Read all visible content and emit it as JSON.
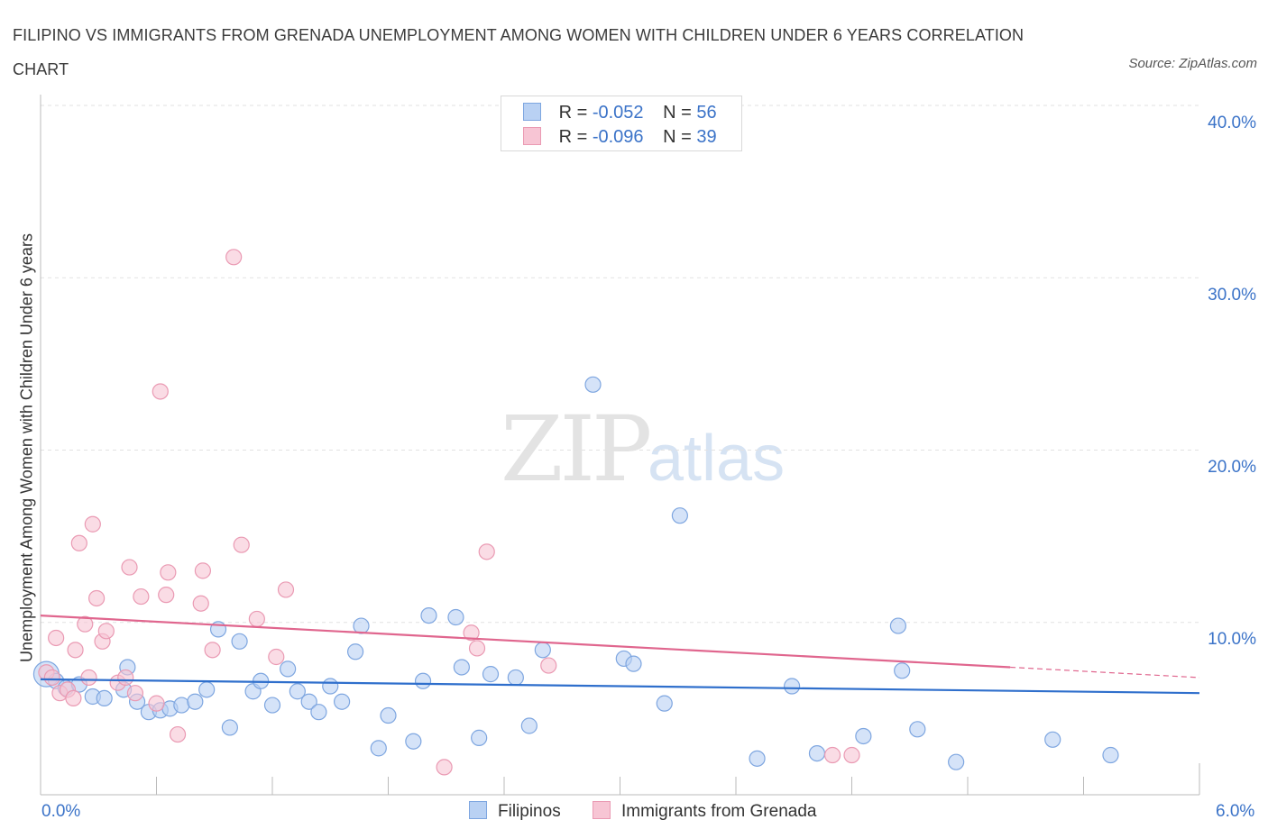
{
  "title": "FILIPINO VS IMMIGRANTS FROM GRENADA UNEMPLOYMENT AMONG WOMEN WITH CHILDREN UNDER 6 YEARS CORRELATION CHART",
  "source": "Source: ZipAtlas.com",
  "watermark": {
    "zip": "ZIP",
    "atlas": "atlas"
  },
  "legend": {
    "rows": [
      {
        "r_label": "R =",
        "r_value": "-0.052",
        "n_label": "N =",
        "n_value": "56"
      },
      {
        "r_label": "R =",
        "r_value": "-0.096",
        "n_label": "N =",
        "n_value": "39"
      }
    ]
  },
  "colors": {
    "filipinos_fill": "#b9d1f3",
    "filipinos_stroke": "#7ea6e0",
    "filipinos_line": "#2f6fcc",
    "grenada_fill": "#f7c5d4",
    "grenada_stroke": "#ea9ab3",
    "grenada_line": "#e0668e",
    "accent_text": "#3b73c8"
  },
  "chart_data": {
    "type": "scatter",
    "title": "FILIPINO VS IMMIGRANTS FROM GRENADA UNEMPLOYMENT AMONG WOMEN WITH CHILDREN UNDER 6 YEARS CORRELATION CHART",
    "xlabel": "",
    "ylabel": "Unemployment Among Women with Children Under 6 years",
    "xlim": [
      0,
      6
    ],
    "ylim": [
      0,
      40
    ],
    "x_tick_labels": [
      "0.0%",
      "6.0%"
    ],
    "y_tick_labels": [
      "10.0%",
      "20.0%",
      "30.0%",
      "40.0%"
    ],
    "y_ticks": [
      10,
      20,
      30,
      40
    ],
    "grid": true,
    "legend_position": "top-center",
    "series": [
      {
        "name": "Filipinos",
        "trend": {
          "x0": 0.0,
          "y0": 6.7,
          "x1": 6.0,
          "y1": 5.9
        },
        "points": [
          [
            0.03,
            7.0
          ],
          [
            0.08,
            6.6
          ],
          [
            0.13,
            6.2
          ],
          [
            0.2,
            6.4
          ],
          [
            0.27,
            5.7
          ],
          [
            0.33,
            5.6
          ],
          [
            0.43,
            6.1
          ],
          [
            0.45,
            7.4
          ],
          [
            0.5,
            5.4
          ],
          [
            0.56,
            4.8
          ],
          [
            0.62,
            4.9
          ],
          [
            0.67,
            5.0
          ],
          [
            0.73,
            5.2
          ],
          [
            0.8,
            5.4
          ],
          [
            0.86,
            6.1
          ],
          [
            0.92,
            9.6
          ],
          [
            0.98,
            3.9
          ],
          [
            1.03,
            8.9
          ],
          [
            1.1,
            6.0
          ],
          [
            1.14,
            6.6
          ],
          [
            1.2,
            5.2
          ],
          [
            1.28,
            7.3
          ],
          [
            1.33,
            6.0
          ],
          [
            1.39,
            5.4
          ],
          [
            1.44,
            4.8
          ],
          [
            1.5,
            6.3
          ],
          [
            1.56,
            5.4
          ],
          [
            1.63,
            8.3
          ],
          [
            1.66,
            9.8
          ],
          [
            1.75,
            2.7
          ],
          [
            1.8,
            4.6
          ],
          [
            1.93,
            3.1
          ],
          [
            1.98,
            6.6
          ],
          [
            2.01,
            10.4
          ],
          [
            2.15,
            10.3
          ],
          [
            2.18,
            7.4
          ],
          [
            2.27,
            3.3
          ],
          [
            2.33,
            7.0
          ],
          [
            2.46,
            6.8
          ],
          [
            2.53,
            4.0
          ],
          [
            2.6,
            8.4
          ],
          [
            2.86,
            23.8
          ],
          [
            3.02,
            7.9
          ],
          [
            3.07,
            7.6
          ],
          [
            3.23,
            5.3
          ],
          [
            3.31,
            16.2
          ],
          [
            3.71,
            2.1
          ],
          [
            3.89,
            6.3
          ],
          [
            4.02,
            2.4
          ],
          [
            4.26,
            3.4
          ],
          [
            4.44,
            9.8
          ],
          [
            4.46,
            7.2
          ],
          [
            4.54,
            3.8
          ],
          [
            4.74,
            1.9
          ],
          [
            5.24,
            3.2
          ],
          [
            5.54,
            2.3
          ]
        ]
      },
      {
        "name": "Immigrants from Grenada",
        "trend": {
          "x0": 0.0,
          "y0": 10.4,
          "x1": 5.02,
          "y1": 7.4,
          "dashed_to_x": 6.0,
          "dashed_to_y": 6.8
        },
        "points": [
          [
            0.03,
            7.1
          ],
          [
            0.06,
            6.8
          ],
          [
            0.08,
            9.1
          ],
          [
            0.1,
            5.9
          ],
          [
            0.14,
            6.1
          ],
          [
            0.17,
            5.6
          ],
          [
            0.18,
            8.4
          ],
          [
            0.2,
            14.6
          ],
          [
            0.23,
            9.9
          ],
          [
            0.25,
            6.8
          ],
          [
            0.27,
            15.7
          ],
          [
            0.29,
            11.4
          ],
          [
            0.32,
            8.9
          ],
          [
            0.34,
            9.5
          ],
          [
            0.4,
            6.5
          ],
          [
            0.44,
            6.8
          ],
          [
            0.46,
            13.2
          ],
          [
            0.49,
            5.9
          ],
          [
            0.52,
            11.5
          ],
          [
            0.6,
            5.3
          ],
          [
            0.62,
            23.4
          ],
          [
            0.65,
            11.6
          ],
          [
            0.66,
            12.9
          ],
          [
            0.71,
            3.5
          ],
          [
            0.83,
            11.1
          ],
          [
            0.84,
            13.0
          ],
          [
            0.89,
            8.4
          ],
          [
            1.0,
            31.2
          ],
          [
            1.04,
            14.5
          ],
          [
            1.12,
            10.2
          ],
          [
            1.22,
            8.0
          ],
          [
            1.27,
            11.9
          ],
          [
            2.09,
            1.6
          ],
          [
            2.23,
            9.4
          ],
          [
            2.26,
            8.5
          ],
          [
            2.31,
            14.1
          ],
          [
            2.63,
            7.5
          ],
          [
            4.1,
            2.3
          ],
          [
            4.2,
            2.3
          ]
        ]
      }
    ]
  },
  "bottom_legend": [
    "Filipinos",
    "Immigrants from Grenada"
  ]
}
